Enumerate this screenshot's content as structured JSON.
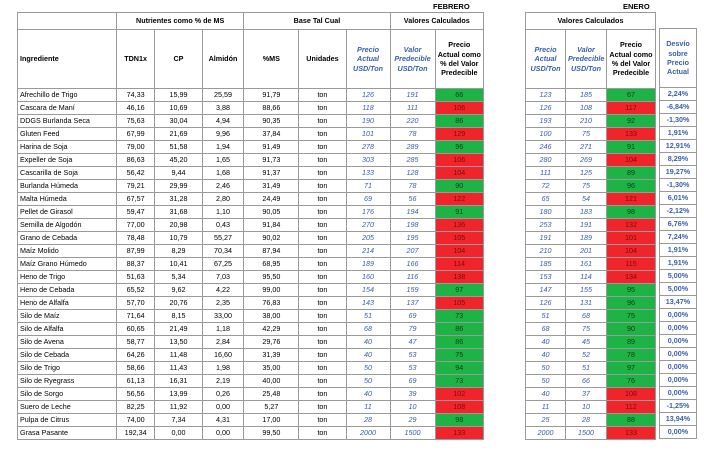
{
  "months": {
    "feb": "FEBRERO",
    "jan": "ENERO"
  },
  "groups": {
    "nutrientes": "Nutrientes como % de MS",
    "base": "Base Tal Cual",
    "valores_feb": "Valores Calculados",
    "valores_jan": "Valores Calculados"
  },
  "headers": {
    "ingrediente": "Ingrediente",
    "tdn": "TDN1x",
    "cp": "CP",
    "almidon": "Almidón",
    "ms": "%MS",
    "unidades": "Unidades",
    "precio_actual": "Precio Actual USD/Ton",
    "valor_pred": "Valor Predecible USD/Ton",
    "pct": "Precio Actual como % del Valor Predecible",
    "precio_actual_j": "Precio Actual USD/Ton",
    "valor_pred_j": "Valor Predecible USD/Ton",
    "pct_j": "Precio Actual como % del Valor Predecible",
    "desvio": "Desvío sobre Precio Actual"
  },
  "colors": {
    "green": "#1db445",
    "red": "#f0252b",
    "blue_text": "#3a5ea8",
    "header_shade": "#dcdcdc"
  },
  "rows": [
    {
      "ing": "Afrechillo de Trigo",
      "tdn": "74,33",
      "cp": "15,99",
      "alm": "25,59",
      "ms": "91,79",
      "u": "ton",
      "pa": "126",
      "vp": "191",
      "pct": "66",
      "c": "g",
      "paj": "123",
      "vpj": "185",
      "pctj": "67",
      "cj": "g",
      "desv": "2,24%"
    },
    {
      "ing": "Cascara de Maní",
      "tdn": "46,16",
      "cp": "10,69",
      "alm": "3,88",
      "ms": "88,66",
      "u": "ton",
      "pa": "118",
      "vp": "111",
      "pct": "106",
      "c": "r",
      "paj": "126",
      "vpj": "108",
      "pctj": "117",
      "cj": "r",
      "desv": "-6,84%"
    },
    {
      "ing": "DDGS Burlanda Seca",
      "tdn": "75,63",
      "cp": "30,04",
      "alm": "4,94",
      "ms": "90,35",
      "u": "ton",
      "pa": "190",
      "vp": "220",
      "pct": "86",
      "c": "g",
      "paj": "193",
      "vpj": "210",
      "pctj": "92",
      "cj": "g",
      "desv": "-1,30%"
    },
    {
      "ing": "Gluten Feed",
      "tdn": "67,99",
      "cp": "21,69",
      "alm": "9,96",
      "ms": "37,84",
      "u": "ton",
      "pa": "101",
      "vp": "78",
      "pct": "129",
      "c": "r",
      "paj": "100",
      "vpj": "75",
      "pctj": "133",
      "cj": "r",
      "desv": "1,91%"
    },
    {
      "ing": "Harina de Soja",
      "tdn": "79,00",
      "cp": "51,58",
      "alm": "1,94",
      "ms": "91,49",
      "u": "ton",
      "pa": "278",
      "vp": "289",
      "pct": "96",
      "c": "g",
      "paj": "246",
      "vpj": "271",
      "pctj": "91",
      "cj": "g",
      "desv": "12,91%"
    },
    {
      "ing": "Expeller de Soja",
      "tdn": "86,63",
      "cp": "45,20",
      "alm": "1,65",
      "ms": "91,73",
      "u": "ton",
      "pa": "303",
      "vp": "285",
      "pct": "106",
      "c": "r",
      "paj": "280",
      "vpj": "269",
      "pctj": "104",
      "cj": "r",
      "desv": "8,29%"
    },
    {
      "ing": "Cascarilla de Soja",
      "tdn": "56,42",
      "cp": "9,44",
      "alm": "1,68",
      "ms": "91,37",
      "u": "ton",
      "pa": "133",
      "vp": "128",
      "pct": "104",
      "c": "r",
      "paj": "111",
      "vpj": "125",
      "pctj": "89",
      "cj": "g",
      "desv": "19,27%"
    },
    {
      "ing": "Burlanda Húmeda",
      "tdn": "79,21",
      "cp": "29,99",
      "alm": "2,46",
      "ms": "31,49",
      "u": "ton",
      "pa": "71",
      "vp": "78",
      "pct": "90",
      "c": "g",
      "paj": "72",
      "vpj": "75",
      "pctj": "96",
      "cj": "g",
      "desv": "-1,30%"
    },
    {
      "ing": "Malta Húmeda",
      "tdn": "67,57",
      "cp": "31,28",
      "alm": "2,80",
      "ms": "24,49",
      "u": "ton",
      "pa": "69",
      "vp": "56",
      "pct": "122",
      "c": "r",
      "paj": "65",
      "vpj": "54",
      "pctj": "121",
      "cj": "r",
      "desv": "6,01%"
    },
    {
      "ing": "Pellet de Girasol",
      "tdn": "59,47",
      "cp": "31,68",
      "alm": "1,10",
      "ms": "90,05",
      "u": "ton",
      "pa": "176",
      "vp": "194",
      "pct": "91",
      "c": "g",
      "paj": "180",
      "vpj": "183",
      "pctj": "98",
      "cj": "g",
      "desv": "-2,12%"
    },
    {
      "ing": "Semilla de Algodón",
      "tdn": "77,00",
      "cp": "20,98",
      "alm": "0,43",
      "ms": "91,84",
      "u": "ton",
      "pa": "270",
      "vp": "198",
      "pct": "136",
      "c": "r",
      "paj": "253",
      "vpj": "191",
      "pctj": "132",
      "cj": "r",
      "desv": "6,76%"
    },
    {
      "ing": "Grano de Cebada",
      "tdn": "78,48",
      "cp": "10,79",
      "alm": "55,27",
      "ms": "90,02",
      "u": "ton",
      "pa": "205",
      "vp": "195",
      "pct": "105",
      "c": "r",
      "paj": "191",
      "vpj": "189",
      "pctj": "101",
      "cj": "r",
      "desv": "7,24%"
    },
    {
      "ing": "Maíz Molido",
      "tdn": "87,99",
      "cp": "8,29",
      "alm": "70,34",
      "ms": "87,94",
      "u": "ton",
      "pa": "214",
      "vp": "207",
      "pct": "104",
      "c": "r",
      "paj": "210",
      "vpj": "201",
      "pctj": "104",
      "cj": "r",
      "desv": "1,91%"
    },
    {
      "ing": "Maíz Grano Húmedo",
      "tdn": "88,37",
      "cp": "10,41",
      "alm": "67,25",
      "ms": "68,95",
      "u": "ton",
      "pa": "189",
      "vp": "166",
      "pct": "114",
      "c": "r",
      "paj": "185",
      "vpj": "161",
      "pctj": "115",
      "cj": "r",
      "desv": "1,91%"
    },
    {
      "ing": "Heno de Trigo",
      "tdn": "51,63",
      "cp": "5,34",
      "alm": "7,03",
      "ms": "95,50",
      "u": "ton",
      "pa": "160",
      "vp": "116",
      "pct": "138",
      "c": "r",
      "paj": "153",
      "vpj": "114",
      "pctj": "134",
      "cj": "r",
      "desv": "5,00%"
    },
    {
      "ing": "Heno de Cebada",
      "tdn": "65,52",
      "cp": "9,62",
      "alm": "4,22",
      "ms": "99,00",
      "u": "ton",
      "pa": "154",
      "vp": "159",
      "pct": "97",
      "c": "g",
      "paj": "147",
      "vpj": "155",
      "pctj": "95",
      "cj": "g",
      "desv": "5,00%"
    },
    {
      "ing": "Heno de Alfalfa",
      "tdn": "57,70",
      "cp": "20,76",
      "alm": "2,35",
      "ms": "76,83",
      "u": "ton",
      "pa": "143",
      "vp": "137",
      "pct": "105",
      "c": "r",
      "paj": "126",
      "vpj": "131",
      "pctj": "96",
      "cj": "g",
      "desv": "13,47%"
    },
    {
      "ing": "Silo de Maíz",
      "tdn": "71,64",
      "cp": "8,15",
      "alm": "33,00",
      "ms": "38,00",
      "u": "ton",
      "pa": "51",
      "vp": "69",
      "pct": "73",
      "c": "g",
      "paj": "51",
      "vpj": "68",
      "pctj": "75",
      "cj": "g",
      "desv": "0,00%"
    },
    {
      "ing": "Silo de Alfalfa",
      "tdn": "60,65",
      "cp": "21,49",
      "alm": "1,18",
      "ms": "42,29",
      "u": "ton",
      "pa": "68",
      "vp": "79",
      "pct": "86",
      "c": "g",
      "paj": "68",
      "vpj": "75",
      "pctj": "90",
      "cj": "g",
      "desv": "0,00%"
    },
    {
      "ing": "Silo de Avena",
      "tdn": "58,77",
      "cp": "13,50",
      "alm": "2,84",
      "ms": "29,76",
      "u": "ton",
      "pa": "40",
      "vp": "47",
      "pct": "86",
      "c": "g",
      "paj": "40",
      "vpj": "45",
      "pctj": "89",
      "cj": "g",
      "desv": "0,00%"
    },
    {
      "ing": "Silo de Cebada",
      "tdn": "64,26",
      "cp": "11,48",
      "alm": "16,60",
      "ms": "31,39",
      "u": "ton",
      "pa": "40",
      "vp": "53",
      "pct": "75",
      "c": "g",
      "paj": "40",
      "vpj": "52",
      "pctj": "78",
      "cj": "g",
      "desv": "0,00%"
    },
    {
      "ing": "Silo de Trigo",
      "tdn": "58,66",
      "cp": "11,43",
      "alm": "1,98",
      "ms": "35,00",
      "u": "ton",
      "pa": "50",
      "vp": "53",
      "pct": "94",
      "c": "g",
      "paj": "50",
      "vpj": "51",
      "pctj": "97",
      "cj": "g",
      "desv": "0,00%"
    },
    {
      "ing": "Silo de Ryegrass",
      "tdn": "61,13",
      "cp": "16,31",
      "alm": "2,19",
      "ms": "40,00",
      "u": "ton",
      "pa": "50",
      "vp": "69",
      "pct": "73",
      "c": "g",
      "paj": "50",
      "vpj": "66",
      "pctj": "76",
      "cj": "g",
      "desv": "0,00%"
    },
    {
      "ing": "Silo de Sorgo",
      "tdn": "56,56",
      "cp": "13,99",
      "alm": "0,26",
      "ms": "25,48",
      "u": "ton",
      "pa": "40",
      "vp": "39",
      "pct": "102",
      "c": "r",
      "paj": "40",
      "vpj": "37",
      "pctj": "108",
      "cj": "r",
      "desv": "0,00%"
    },
    {
      "ing": "Suero de Leche",
      "tdn": "82,25",
      "cp": "11,92",
      "alm": "0,00",
      "ms": "5,27",
      "u": "ton",
      "pa": "11",
      "vp": "10",
      "pct": "108",
      "c": "r",
      "paj": "11",
      "vpj": "10",
      "pctj": "112",
      "cj": "r",
      "desv": "-1,25%"
    },
    {
      "ing": "Pulpa de Citrus",
      "tdn": "74,00",
      "cp": "7,34",
      "alm": "4,31",
      "ms": "17,00",
      "u": "ton",
      "pa": "28",
      "vp": "29",
      "pct": "98",
      "c": "g",
      "paj": "25",
      "vpj": "28",
      "pctj": "88",
      "cj": "g",
      "desv": "13,94%"
    },
    {
      "ing": "Grasa Pasante",
      "tdn": "192,34",
      "cp": "0,00",
      "alm": "0,00",
      "ms": "99,50",
      "u": "ton",
      "pa": "2000",
      "vp": "1500",
      "pct": "133",
      "c": "r",
      "paj": "2000",
      "vpj": "1500",
      "pctj": "133",
      "cj": "r",
      "desv": "0,00%"
    }
  ]
}
